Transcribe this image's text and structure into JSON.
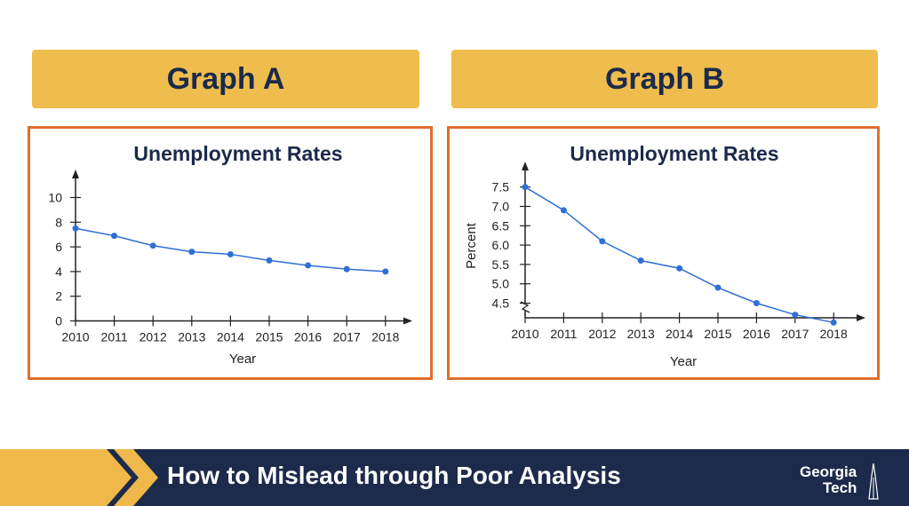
{
  "header": {
    "graph_a_label": "Graph A",
    "graph_b_label": "Graph B"
  },
  "chart_data": [
    {
      "type": "line",
      "title": "Unemployment Rates",
      "xlabel": "Year",
      "ylabel": "",
      "x": [
        "2010",
        "2011",
        "2012",
        "2013",
        "2014",
        "2015",
        "2016",
        "2017",
        "2018"
      ],
      "series": [
        {
          "values": [
            7.5,
            6.9,
            6.1,
            5.6,
            5.4,
            4.9,
            4.5,
            4.2,
            4.0
          ]
        }
      ],
      "ylim": [
        0,
        10
      ],
      "yticks": [
        0,
        2,
        4,
        6,
        8,
        10
      ],
      "ytick_labels": [
        "0",
        "2",
        "4",
        "6",
        "8",
        "10"
      ],
      "grid": false,
      "color": "#2F6FD6"
    },
    {
      "type": "line",
      "title": "Unemployment Rates",
      "xlabel": "Year",
      "ylabel": "Percent",
      "x": [
        "2010",
        "2011",
        "2012",
        "2013",
        "2014",
        "2015",
        "2016",
        "2017",
        "2018"
      ],
      "series": [
        {
          "values": [
            7.5,
            6.9,
            6.1,
            5.6,
            5.4,
            4.9,
            4.5,
            4.2,
            4.0
          ]
        }
      ],
      "ylim": [
        4.5,
        7.5
      ],
      "axis_break": true,
      "yticks": [
        4.5,
        5.0,
        5.5,
        6.0,
        6.5,
        7.0,
        7.5
      ],
      "ytick_labels": [
        "4.5",
        "5.0",
        "5.5",
        "6.0",
        "6.5",
        "7.0",
        "7.5"
      ],
      "grid": false,
      "color": "#2F6FD6"
    }
  ],
  "footer": {
    "title": "How to Mislead through Poor Analysis",
    "logo_line1": "Georgia",
    "logo_line2": "Tech"
  },
  "colors": {
    "banner": "#EFBD4D",
    "panel_border": "#E06E2E",
    "navy": "#1C2B4B",
    "gold": "#EFB84A"
  }
}
